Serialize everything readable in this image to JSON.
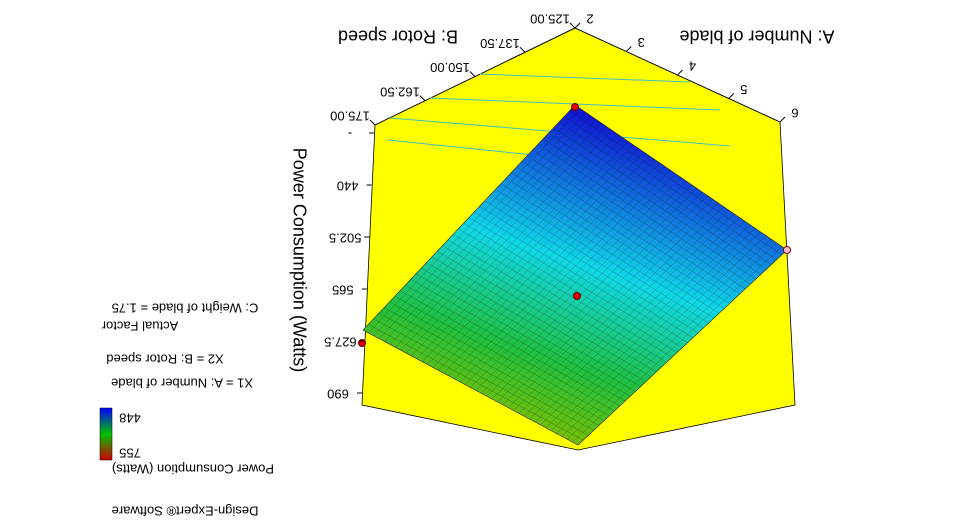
{
  "chart_data": {
    "type": "surface",
    "notes": [
      "Design-Expert® Software",
      "Power Consumption (Watts)",
      "X1 = A: Number of blade",
      "X2 = B: Rotor speed",
      "Actual Factor",
      "C: Weight of blade = 1.75"
    ],
    "colorbar": [
      {
        "value": 755,
        "label": "755",
        "color": "#c00000"
      },
      {
        "value": 448,
        "label": "448",
        "color": "#0000ff"
      }
    ],
    "x_label": "A: Number of blade",
    "y_label": "B: Rotor speed",
    "z_label": "Power Consumption (Watts)",
    "xlim": [
      2,
      6
    ],
    "xticks": [
      2,
      3,
      4,
      5,
      6
    ],
    "ylim": [
      125,
      175
    ],
    "yticks": [
      {
        "value": 125,
        "label": "125.00"
      },
      {
        "value": 137.5,
        "label": "137.50"
      },
      {
        "value": 150,
        "label": "150.00"
      },
      {
        "value": 162.5,
        "label": "162.50"
      },
      {
        "value": 175,
        "label": "175.00"
      }
    ],
    "zlim": [
      377.5,
      690
    ],
    "zticks": [
      {
        "value": 377.5,
        "label": "-"
      },
      440,
      502.5,
      565,
      627.5,
      690
    ]
  }
}
